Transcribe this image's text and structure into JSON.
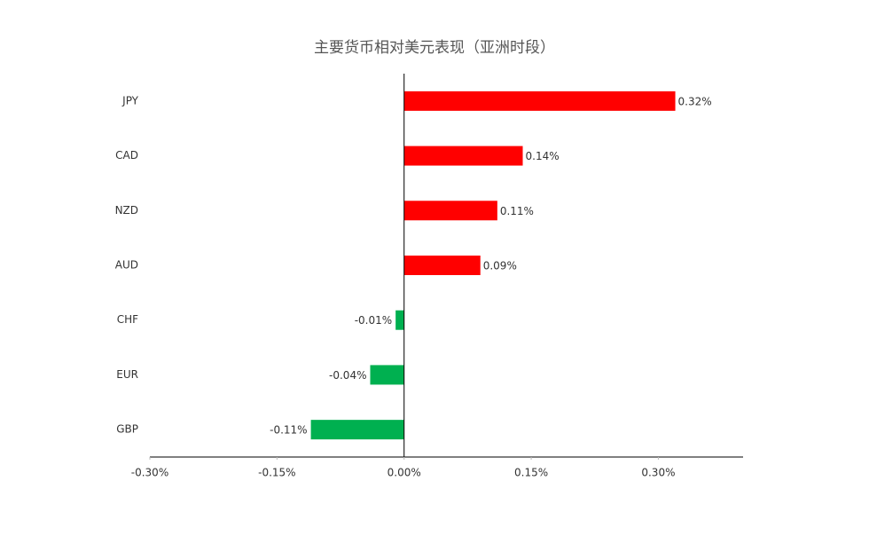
{
  "chart_data": {
    "type": "hbar",
    "title": "主要货币相对美元表现（亚洲时段）",
    "categories": [
      "JPY",
      "CAD",
      "NZD",
      "AUD",
      "CHF",
      "EUR",
      "GBP"
    ],
    "values": [
      0.32,
      0.14,
      0.11,
      0.09,
      -0.01,
      -0.04,
      -0.11
    ],
    "value_labels": [
      "0.32%",
      "0.14%",
      "0.11%",
      "0.09%",
      "-0.01%",
      "-0.04%",
      "-0.11%"
    ],
    "colors": [
      "#ff0000",
      "#ff0000",
      "#ff0000",
      "#ff0000",
      "#00b050",
      "#00b050",
      "#00b050"
    ],
    "xlim": [
      -0.3,
      0.4
    ],
    "xticks": [
      {
        "value": -0.3,
        "label": "-0.30%"
      },
      {
        "value": -0.15,
        "label": "-0.15%"
      },
      {
        "value": 0,
        "label": "0.00%"
      },
      {
        "value": 0.15,
        "label": "0.15%"
      },
      {
        "value": 0.3,
        "label": "0.30%"
      }
    ],
    "grid": false
  }
}
